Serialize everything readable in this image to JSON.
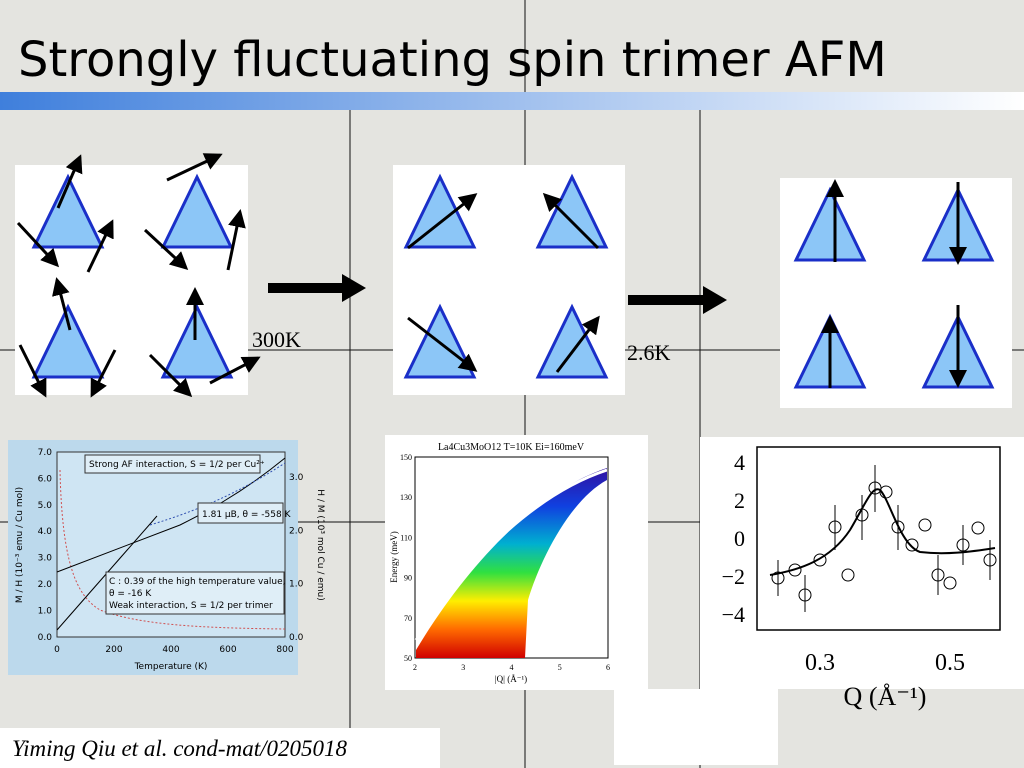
{
  "header": {
    "title": "Strongly fluctuating spin trimer AFM"
  },
  "labels": {
    "t1": "300K",
    "t2": "2.6K"
  },
  "citation": "Yiming Qiu et al. cond-mat/0205018",
  "panel_a": {
    "yticks": [
      "7.0",
      "6.0",
      "5.0",
      "4.0",
      "3.0",
      "2.0",
      "1.0",
      "0.0"
    ],
    "y2ticks": [
      "3.0",
      "2.0",
      "1.0",
      "0.0"
    ],
    "xticks": [
      "0",
      "200",
      "400",
      "600",
      "800"
    ],
    "xlabel": "Temperature (K)",
    "ylabel": "M / H (10⁻³ emu / Cu mol)",
    "y2label": "H / M (10³ mol Cu / emu)",
    "notes": [
      "Strong AF interaction, S = 1/2 per Cu²⁺",
      "1.81 μB, θ = -558 K",
      "C : 0.39 of the high temperature value,",
      "θ = -16 K",
      "Weak interaction, S = 1/2 per trimer"
    ]
  },
  "panel_b": {
    "title": "La4Cu3MoO12 T=10K Ei=160meV",
    "yticks": [
      "150",
      "130",
      "110",
      "90",
      "70",
      "50"
    ],
    "xticks": [
      "2",
      "3",
      "4",
      "5",
      "6"
    ],
    "ylabel": "Energy (meV)",
    "xlabel": "|Q| (Å⁻¹)"
  },
  "panel_c": {
    "yticks": [
      "4",
      "2",
      "0",
      "−2",
      "−4"
    ],
    "xticks": [
      "0.3",
      "0.5"
    ],
    "xlabel": "Q (Å⁻¹)"
  }
}
